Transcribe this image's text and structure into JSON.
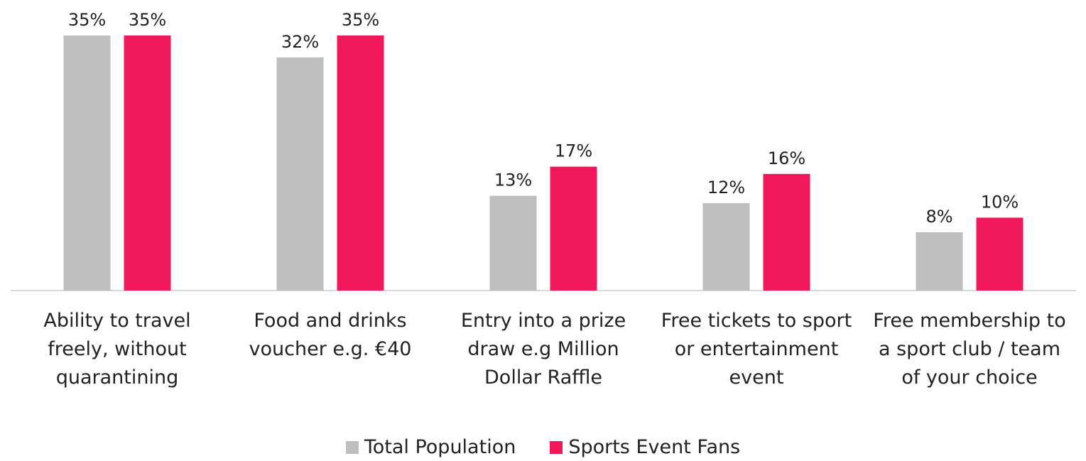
{
  "chart_data": {
    "type": "bar",
    "categories": [
      "Ability to travel freely, without quarantining",
      "Food and drinks voucher e.g. €40",
      "Entry into a prize draw e.g Million Dollar Raffle",
      "Free tickets to sport or entertainment event",
      "Free membership to a sport club / team of your choice"
    ],
    "series": [
      {
        "name": "Total Population",
        "color": "#bfbfbf",
        "values": [
          35,
          32,
          13,
          12,
          8
        ],
        "value_labels": [
          "35%",
          "32%",
          "13%",
          "12%",
          "8%"
        ]
      },
      {
        "name": "Sports Event Fans",
        "color": "#f0175b",
        "values": [
          35,
          35,
          17,
          16,
          10
        ],
        "value_labels": [
          "35%",
          "35%",
          "17%",
          "16%",
          "10%"
        ]
      }
    ],
    "legend": "bottom"
  }
}
